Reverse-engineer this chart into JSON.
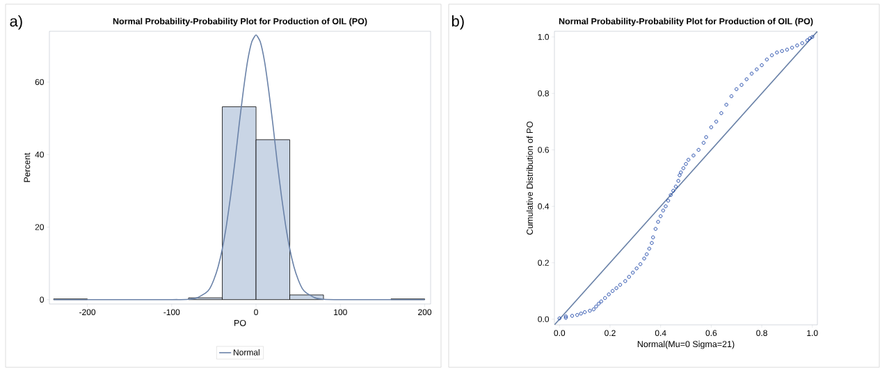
{
  "chart_data": [
    {
      "type": "histogram",
      "title": "Normal Probability-Probability Plot for Production of OIL (PO)",
      "xlabel": "PO",
      "ylabel": "Percent",
      "annotations": [
        "a)"
      ],
      "bins": [
        -240,
        -200,
        -160,
        -120,
        -80,
        -40,
        0,
        40,
        80,
        120,
        160,
        200
      ],
      "xlim": [
        -245,
        207
      ],
      "ylim": [
        -1.2,
        74
      ],
      "xticks": [
        -200,
        -100,
        0,
        100,
        200
      ],
      "yticks": [
        0,
        20,
        40,
        60
      ],
      "legend": "bottom",
      "series": [
        {
          "color": "#c9d5e5",
          "values": [
            0.2,
            null,
            null,
            null,
            0.5,
            53.2,
            44.1,
            1.3,
            null,
            null,
            0.2
          ]
        },
        {
          "type": "line",
          "name": "Normal",
          "color": "#6a82a8",
          "x": [
            -240,
            -100,
            -80,
            -70,
            -60,
            -55,
            -50,
            -45,
            -40,
            -35,
            -30,
            -25,
            -20,
            -15,
            -10,
            -5,
            0,
            5,
            10,
            15,
            20,
            25,
            30,
            35,
            40,
            45,
            50,
            55,
            60,
            70,
            80,
            100,
            200
          ],
          "values": [
            0,
            0,
            0.1,
            0.5,
            1.8,
            3,
            5.5,
            9,
            14,
            20.6,
            28.8,
            38.1,
            48.3,
            57.7,
            65.8,
            71.1,
            73,
            71.1,
            65.8,
            57.7,
            48.3,
            38.1,
            28.8,
            20.6,
            14,
            9,
            5.5,
            3,
            1.8,
            0.5,
            0.1,
            0,
            0
          ]
        }
      ]
    },
    {
      "type": "scatter",
      "title": "Normal Probability-Probability Plot for Production of OIL (PO)",
      "xlabel": "Normal(Mu=0 Sigma=21)",
      "ylabel": "Cumulative Distribution of PO",
      "annotations": [
        "b)"
      ],
      "xlim": [
        -0.02,
        1.02
      ],
      "ylim": [
        -0.02,
        1.02
      ],
      "xticks": [
        {
          "value": 0,
          "label": "0.0"
        },
        {
          "value": 0.2,
          "label": "0.2"
        },
        {
          "value": 0.4,
          "label": "0.4"
        },
        {
          "value": 0.6,
          "label": "0.6"
        },
        {
          "value": 0.8,
          "label": "0.8"
        },
        {
          "value": 1,
          "label": "1.0"
        }
      ],
      "yticks": [
        {
          "value": 0,
          "label": "0.0"
        },
        {
          "value": 0.2,
          "label": "0.2"
        },
        {
          "value": 0.4,
          "label": "0.4"
        },
        {
          "value": 0.6,
          "label": "0.6"
        },
        {
          "value": 0.8,
          "label": "0.8"
        },
        {
          "value": 1,
          "label": "1.0"
        }
      ],
      "series": [
        {
          "marker": "circle",
          "color": "#0a37a0",
          "x": [
            0,
            0.025,
            0.025,
            0.05,
            0.07,
            0.085,
            0.1,
            0.12,
            0.135,
            0.145,
            0.155,
            0.165,
            0.18,
            0.195,
            0.21,
            0.225,
            0.24,
            0.26,
            0.275,
            0.29,
            0.305,
            0.32,
            0.335,
            0.345,
            0.355,
            0.365,
            0.37,
            0.38,
            0.39,
            0.4,
            0.41,
            0.42,
            0.43,
            0.44,
            0.45,
            0.46,
            0.47,
            0.475,
            0.48,
            0.49,
            0.5,
            0.51,
            0.53,
            0.55,
            0.57,
            0.58,
            0.6,
            0.62,
            0.64,
            0.66,
            0.68,
            0.7,
            0.72,
            0.74,
            0.76,
            0.78,
            0.8,
            0.82,
            0.84,
            0.86,
            0.88,
            0.9,
            0.92,
            0.94,
            0.96,
            0.98,
            0.99,
            1
          ],
          "values": [
            0.003,
            0.005,
            0.01,
            0.012,
            0.015,
            0.02,
            0.025,
            0.03,
            0.035,
            0.045,
            0.055,
            0.063,
            0.075,
            0.088,
            0.1,
            0.11,
            0.122,
            0.135,
            0.15,
            0.165,
            0.18,
            0.195,
            0.215,
            0.23,
            0.25,
            0.27,
            0.29,
            0.32,
            0.345,
            0.365,
            0.385,
            0.4,
            0.42,
            0.44,
            0.455,
            0.47,
            0.49,
            0.51,
            0.52,
            0.535,
            0.55,
            0.565,
            0.58,
            0.6,
            0.625,
            0.645,
            0.68,
            0.7,
            0.73,
            0.76,
            0.79,
            0.815,
            0.83,
            0.85,
            0.87,
            0.885,
            0.9,
            0.92,
            0.935,
            0.945,
            0.95,
            0.955,
            0.962,
            0.97,
            0.978,
            0.988,
            0.995,
            1
          ]
        },
        {
          "type": "line",
          "color": "#6a82a8",
          "x": [
            -0.02,
            1.02
          ],
          "values": [
            -0.02,
            1.02
          ]
        }
      ]
    }
  ]
}
